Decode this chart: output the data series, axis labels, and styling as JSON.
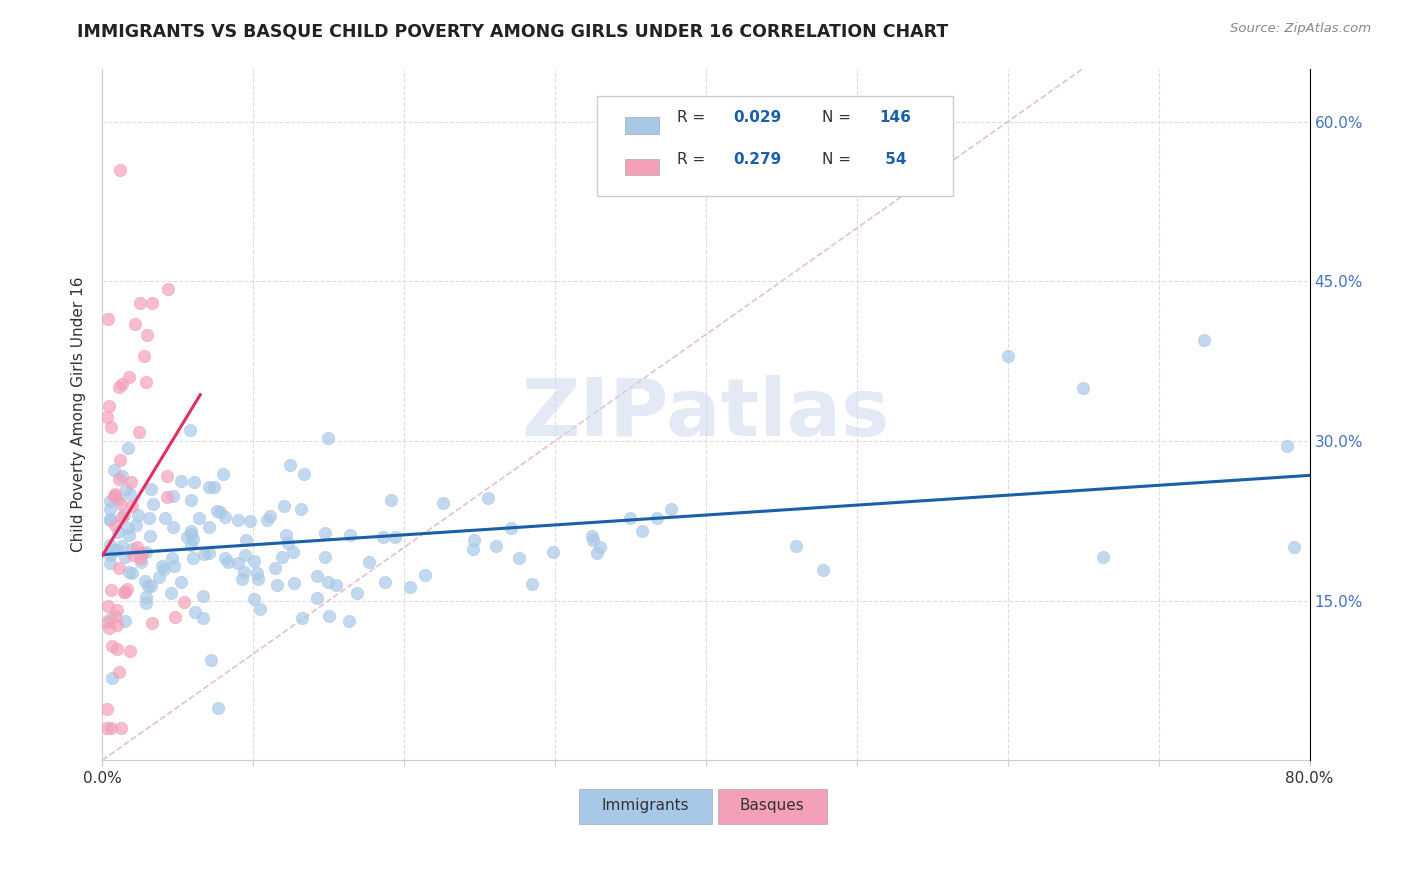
{
  "title": "IMMIGRANTS VS BASQUE CHILD POVERTY AMONG GIRLS UNDER 16 CORRELATION CHART",
  "source": "Source: ZipAtlas.com",
  "ylabel": "Child Poverty Among Girls Under 16",
  "xlim": [
    0.0,
    0.8
  ],
  "ylim": [
    0.0,
    0.65
  ],
  "xtick_positions": [
    0.0,
    0.1,
    0.2,
    0.3,
    0.4,
    0.5,
    0.6,
    0.7,
    0.8
  ],
  "xticklabels": [
    "0.0%",
    "",
    "",
    "",
    "",
    "",
    "",
    "",
    "80.0%"
  ],
  "ytick_positions": [
    0.15,
    0.3,
    0.45,
    0.6
  ],
  "ytick_labels": [
    "15.0%",
    "30.0%",
    "45.0%",
    "60.0%"
  ],
  "r_immigrants": 0.029,
  "n_immigrants": 146,
  "r_basques": 0.279,
  "n_basques": 54,
  "watermark": "ZIPatlas",
  "immigrants_color": "#a8c8e8",
  "basques_color": "#f4a0b8",
  "trendline_immigrants_color": "#1a5fa8",
  "trendline_basques_color": "#e03060",
  "diagonal_color": "#e8c0d0",
  "legend_immigrants_color": "#a8c8e8",
  "legend_basques_color": "#f4a0b8",
  "legend_text_color": "#1a5fa8",
  "legend_label_color": "#333333",
  "title_color": "#222222",
  "source_color": "#888888",
  "ylabel_color": "#333333",
  "ytick_color": "#4472c4",
  "xtick_color": "#333333",
  "grid_color": "#dddddd",
  "watermark_color": "#ccd8ee"
}
